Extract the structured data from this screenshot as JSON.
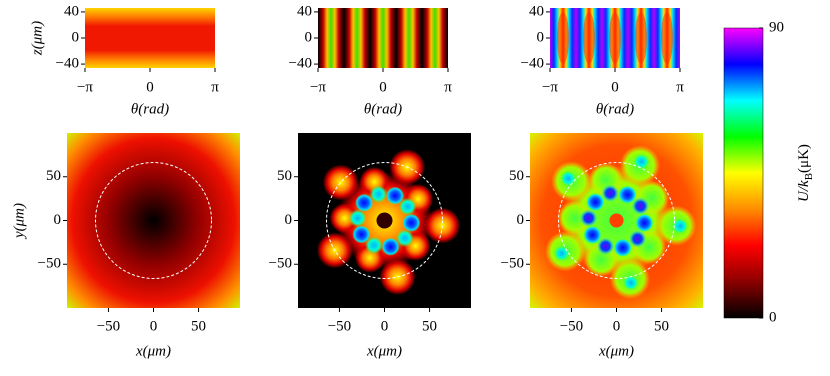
{
  "chart_data": [
    {
      "type": "heatmap",
      "xlabel": "θ(rad)",
      "ylabel": "z(μm)",
      "xlim": [
        -3.14159,
        3.14159
      ],
      "ylim": [
        -46,
        46
      ],
      "xticks": [
        {
          "value": -3.14159,
          "label": "−π"
        },
        0,
        {
          "value": 3.14159,
          "label": "π"
        }
      ],
      "yticks": [
        40,
        0,
        {
          "value": -40,
          "label": "−40"
        }
      ]
    },
    {
      "type": "heatmap",
      "xlabel": "θ(rad)",
      "xlim": [
        -3.14159,
        3.14159
      ],
      "ylim": [
        -46,
        46
      ],
      "xticks": [
        {
          "value": -3.14159,
          "label": "−π"
        },
        0,
        {
          "value": 3.14159,
          "label": "π"
        }
      ],
      "yticks": [
        40,
        0,
        {
          "value": -40,
          "label": "−40"
        }
      ]
    },
    {
      "type": "heatmap",
      "xlabel": "θ(rad)",
      "xlim": [
        -3.14159,
        3.14159
      ],
      "ylim": [
        -46,
        46
      ],
      "xticks": [
        {
          "value": -3.14159,
          "label": "−π"
        },
        0,
        {
          "value": 3.14159,
          "label": "π"
        }
      ],
      "yticks": [
        40,
        0,
        {
          "value": -40,
          "label": "−40"
        }
      ]
    },
    {
      "type": "heatmap",
      "xlabel": "x(μm)",
      "ylabel": "y(μm)",
      "xlim": [
        -96,
        96
      ],
      "ylim": [
        -100,
        100
      ],
      "xticks": [
        {
          "value": -50,
          "label": "−50"
        },
        0,
        50
      ],
      "yticks": [
        50,
        0,
        {
          "value": -50,
          "label": "−50"
        }
      ]
    },
    {
      "type": "heatmap",
      "xlabel": "x(μm)",
      "xlim": [
        -96,
        96
      ],
      "ylim": [
        -100,
        100
      ],
      "xticks": [
        {
          "value": -50,
          "label": "−50"
        },
        0,
        50
      ],
      "yticks": [
        50,
        0,
        {
          "value": -50,
          "label": "−50"
        }
      ]
    },
    {
      "type": "heatmap",
      "xlabel": "x(μm)",
      "xlim": [
        -96,
        96
      ],
      "ylim": [
        -100,
        100
      ],
      "xticks": [
        {
          "value": -50,
          "label": "−50"
        },
        0,
        50
      ],
      "yticks": [
        50,
        0,
        {
          "value": -50,
          "label": "−50"
        }
      ]
    },
    {
      "type": "colorbar",
      "label": {
        "symbol": "U/k",
        "sub": "B",
        "unit": "(μK)"
      },
      "zlim": [
        0,
        90
      ],
      "zticks": [
        0,
        90
      ],
      "colors": [
        "#000000",
        "#8b0000",
        "#ff0000",
        "#ff8c00",
        "#ffff00",
        "#00ff00",
        "#00ffff",
        "#0000ff",
        "#ff00ff"
      ]
    }
  ]
}
